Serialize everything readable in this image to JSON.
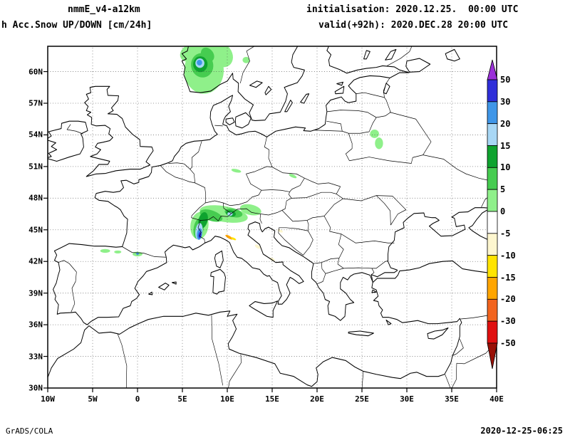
{
  "header": {
    "model": "nmmE_v4-a12km",
    "product": "h Acc.Snow UP/DOWN [cm/24h]",
    "init": "initialisation: 2020.12.25.  00:00 UTC",
    "valid": "valid(+92h): 2020.DEC.28 20:00 UTC"
  },
  "footer": {
    "left": "GrADS/COLA",
    "right": "2020-12-25-06:25"
  },
  "chart_data": {
    "type": "heatmap",
    "variable": "Acc.Snow UP/DOWN",
    "unit": "cm/24h",
    "projection": "lat-lon",
    "lon_range": [
      -10,
      40
    ],
    "lat_range": [
      30,
      62.4
    ],
    "grid": "dotted",
    "x_ticks": {
      "labels": [
        "10W",
        "5W",
        "0",
        "5E",
        "10E",
        "15E",
        "20E",
        "25E",
        "30E",
        "35E",
        "40E"
      ],
      "values": [
        -10,
        -5,
        0,
        5,
        10,
        15,
        20,
        25,
        30,
        35,
        40
      ]
    },
    "y_ticks": {
      "labels": [
        "30N",
        "33N",
        "36N",
        "39N",
        "42N",
        "45N",
        "48N",
        "51N",
        "54N",
        "57N",
        "60N"
      ],
      "values": [
        30,
        33,
        36,
        39,
        42,
        45,
        48,
        51,
        54,
        57,
        60
      ]
    },
    "colorbar": {
      "labels": [
        "50",
        "30",
        "20",
        "15",
        "10",
        "5",
        "0",
        "-5",
        "-10",
        "-15",
        "-20",
        "-30",
        "-50"
      ],
      "bands": [
        {
          "range": ">50",
          "color": "#9b30d9"
        },
        {
          "range": "30-50",
          "color": "#2f2fd9"
        },
        {
          "range": "20-30",
          "color": "#3f96e8"
        },
        {
          "range": "15-20",
          "color": "#a8d7f5"
        },
        {
          "range": "10-15",
          "color": "#0fa32f"
        },
        {
          "range": "5-10",
          "color": "#46cc50"
        },
        {
          "range": "0-5",
          "color": "#8ff08a"
        },
        {
          "range": "-5-0",
          "color": "#ffffff"
        },
        {
          "range": "-10--5",
          "color": "#fdf6cf"
        },
        {
          "range": "-15--10",
          "color": "#ffe400"
        },
        {
          "range": "-20--15",
          "color": "#ffa500"
        },
        {
          "range": "-30--20",
          "color": "#f2641e"
        },
        {
          "range": "-50--30",
          "color": "#e01010"
        },
        {
          "range": "<-50",
          "color": "#991006"
        }
      ]
    },
    "snow_regions": [
      {
        "lon": 7.4,
        "lat": 60.1,
        "rx": 2.2,
        "ry": 2.2,
        "rot": 0,
        "band": "0-5"
      },
      {
        "lon": 5.9,
        "lat": 61.8,
        "rx": 1.2,
        "ry": 0.8,
        "rot": 20,
        "band": "0-5"
      },
      {
        "lon": 9.3,
        "lat": 61.6,
        "rx": 1.4,
        "ry": 1.1,
        "rot": -30,
        "band": "0-5"
      },
      {
        "lon": 8.5,
        "lat": 62.3,
        "rx": 1.6,
        "ry": 0.9,
        "rot": 0,
        "band": "0-5"
      },
      {
        "lon": 7.2,
        "lat": 60.6,
        "rx": 1.25,
        "ry": 1.15,
        "rot": -15,
        "band": "5-10"
      },
      {
        "lon": 7.8,
        "lat": 61.6,
        "rx": 0.8,
        "ry": 0.6,
        "rot": -35,
        "band": "5-10"
      },
      {
        "lon": 7.0,
        "lat": 60.7,
        "rx": 0.8,
        "ry": 0.75,
        "rot": 0,
        "band": "10-15"
      },
      {
        "lon": 6.95,
        "lat": 60.8,
        "rx": 0.5,
        "ry": 0.45,
        "rot": 0,
        "band": "15-20"
      },
      {
        "lon": 6.9,
        "lat": 60.85,
        "rx": 0.3,
        "ry": 0.27,
        "rot": 0,
        "band": "20-30"
      },
      {
        "lon": 12.1,
        "lat": 61.1,
        "rx": 0.4,
        "ry": 0.3,
        "rot": 0,
        "band": "0-5"
      },
      {
        "lon": 26.4,
        "lat": 54.1,
        "rx": 0.5,
        "ry": 0.4,
        "rot": 0,
        "band": "0-5"
      },
      {
        "lon": 26.9,
        "lat": 53.2,
        "rx": 0.45,
        "ry": 0.55,
        "rot": 0,
        "band": "0-5"
      },
      {
        "lon": 11.0,
        "lat": 50.6,
        "rx": 0.55,
        "ry": 0.16,
        "rot": -10,
        "band": "0-5"
      },
      {
        "lon": 17.3,
        "lat": 50.1,
        "rx": 0.45,
        "ry": 0.15,
        "rot": -20,
        "band": "0-5"
      },
      {
        "lon": 9.6,
        "lat": 46.5,
        "rx": 2.7,
        "ry": 0.75,
        "rot": -8,
        "band": "0-5"
      },
      {
        "lon": 12.6,
        "lat": 46.9,
        "rx": 1.2,
        "ry": 0.5,
        "rot": -10,
        "band": "0-5"
      },
      {
        "lon": 6.9,
        "lat": 45.4,
        "rx": 1.0,
        "ry": 1.3,
        "rot": -12,
        "band": "0-5"
      },
      {
        "lon": 8.2,
        "lat": 46.35,
        "rx": 1.3,
        "ry": 0.5,
        "rot": -15,
        "band": "5-10"
      },
      {
        "lon": 10.7,
        "lat": 46.6,
        "rx": 1.0,
        "ry": 0.4,
        "rot": -10,
        "band": "5-10"
      },
      {
        "lon": 6.8,
        "lat": 45.1,
        "rx": 0.55,
        "ry": 1.0,
        "rot": -10,
        "band": "5-10"
      },
      {
        "lon": 7.3,
        "lat": 45.9,
        "rx": 0.5,
        "ry": 0.8,
        "rot": -20,
        "band": "10-15"
      },
      {
        "lon": 10.4,
        "lat": 46.55,
        "rx": 0.55,
        "ry": 0.3,
        "rot": -10,
        "band": "10-15"
      },
      {
        "lon": 6.85,
        "lat": 44.85,
        "rx": 0.4,
        "ry": 0.8,
        "rot": -8,
        "band": "15-20"
      },
      {
        "lon": 6.9,
        "lat": 44.6,
        "rx": 0.28,
        "ry": 0.55,
        "rot": -8,
        "band": "20-30"
      },
      {
        "lon": 6.95,
        "lat": 44.5,
        "rx": 0.16,
        "ry": 0.3,
        "rot": -8,
        "band": "30-50"
      },
      {
        "lon": 10.3,
        "lat": 46.5,
        "rx": 0.3,
        "ry": 0.18,
        "rot": 0,
        "band": "15-20"
      },
      {
        "lon": 10.2,
        "lat": 44.3,
        "rx": 0.45,
        "ry": 0.13,
        "rot": -25,
        "band": "-20--15"
      },
      {
        "lon": 10.7,
        "lat": 44.15,
        "rx": 0.3,
        "ry": 0.1,
        "rot": -20,
        "band": "-15--10"
      },
      {
        "lon": -3.6,
        "lat": 43.0,
        "rx": 0.55,
        "ry": 0.18,
        "rot": 0,
        "band": "0-5"
      },
      {
        "lon": -2.2,
        "lat": 42.9,
        "rx": 0.4,
        "ry": 0.14,
        "rot": 0,
        "band": "0-5"
      },
      {
        "lon": 0.0,
        "lat": 42.7,
        "rx": 0.55,
        "ry": 0.22,
        "rot": 0,
        "band": "0-5"
      },
      {
        "lon": 0.0,
        "lat": 42.75,
        "rx": 0.15,
        "ry": 0.12,
        "rot": 0,
        "band": "20-30"
      },
      {
        "lon": 13.4,
        "lat": 43.4,
        "rx": 0.35,
        "ry": 0.16,
        "rot": -25,
        "band": "-10--5"
      },
      {
        "lon": 15.0,
        "lat": 42.2,
        "rx": 0.3,
        "ry": 0.14,
        "rot": -20,
        "band": "-10--5"
      },
      {
        "lon": 15.9,
        "lat": 44.9,
        "rx": 0.3,
        "ry": 0.13,
        "rot": -20,
        "band": "-10--5"
      }
    ]
  }
}
